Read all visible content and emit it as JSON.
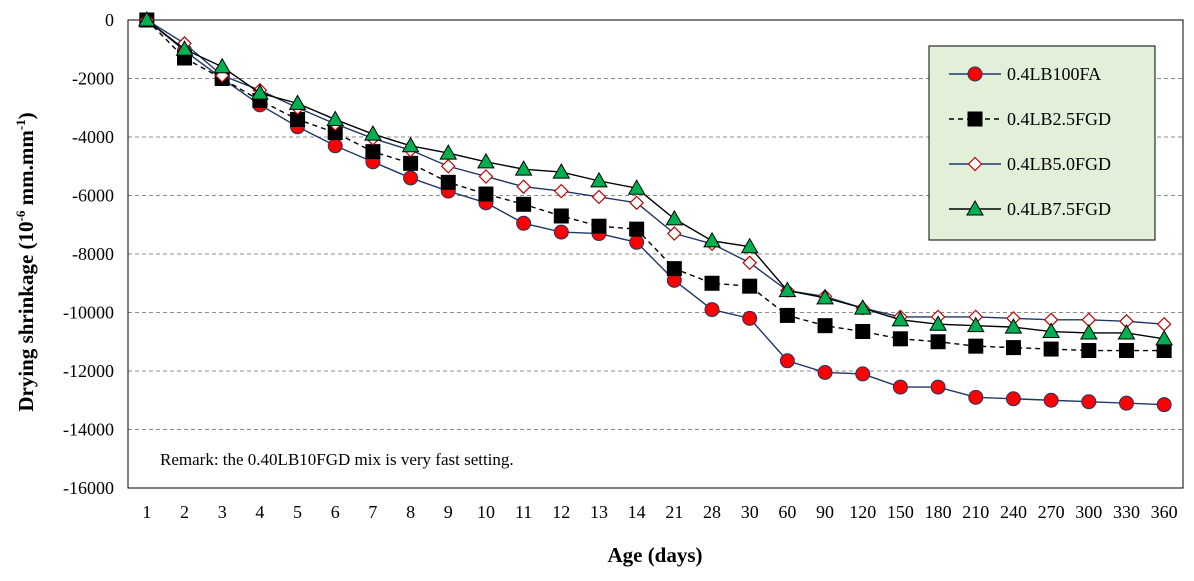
{
  "chart_data": {
    "type": "line",
    "xlabel": "Age (days)",
    "ylabel": "Drying shrinkage (10",
    "ylabel_sup1": "-6",
    "ylabel_mid": " mm.mm",
    "ylabel_sup2": "-1",
    "ylabel_end": ")",
    "ylim": [
      -16000,
      0
    ],
    "yticks": [
      "0",
      "-2000",
      "-4000",
      "-6000",
      "-8000",
      "-10000",
      "-12000",
      "-14000",
      "-16000"
    ],
    "ytick_values": [
      0,
      -2000,
      -4000,
      -6000,
      -8000,
      -10000,
      -12000,
      -14000,
      -16000
    ],
    "grid": "horizontal dashed",
    "categories": [
      "1",
      "2",
      "3",
      "4",
      "5",
      "6",
      "7",
      "8",
      "9",
      "10",
      "11",
      "12",
      "13",
      "14",
      "21",
      "28",
      "30",
      "60",
      "90",
      "120",
      "150",
      "180",
      "210",
      "240",
      "270",
      "300",
      "330",
      "360"
    ],
    "remark": "Remark: the 0.40LB10FGD mix is very fast setting.",
    "legend": {
      "placement": "top-right",
      "background": "#e2efd9"
    },
    "series": [
      {
        "name": "0.4LB100FA",
        "color": "#1f3864",
        "marker": "circle",
        "marker_fill": "#ff0000",
        "dash": "solid",
        "values": [
          0,
          -1050,
          -2000,
          -2900,
          -3650,
          -4300,
          -4850,
          -5400,
          -5850,
          -6250,
          -6950,
          -7250,
          -7300,
          -7600,
          -8900,
          -9900,
          -10200,
          -11650,
          -12050,
          -12100,
          -12550,
          -12550,
          -12900,
          -12950,
          -13000,
          -13050,
          -13100,
          -13150
        ]
      },
      {
        "name": "0.4LB2.5FGD",
        "color": "#000000",
        "marker": "square",
        "marker_fill": "#000000",
        "dash": "dashed",
        "values": [
          0,
          -1300,
          -2000,
          -2750,
          -3400,
          -3850,
          -4500,
          -4900,
          -5550,
          -5950,
          -6300,
          -6700,
          -7050,
          -7150,
          -8500,
          -9000,
          -9100,
          -10100,
          -10450,
          -10650,
          -10900,
          -11000,
          -11150,
          -11200,
          -11250,
          -11300,
          -11300,
          -11300
        ]
      },
      {
        "name": "0.4LB5.0FGD",
        "color": "#1f3864",
        "marker": "diamond",
        "marker_fill": "#ffffff",
        "marker_stroke": "#c00000",
        "dash": "solid",
        "values": [
          0,
          -800,
          -1900,
          -2400,
          -3000,
          -3550,
          -4050,
          -4450,
          -5000,
          -5350,
          -5700,
          -5850,
          -6050,
          -6250,
          -7300,
          -7650,
          -8300,
          -9250,
          -9450,
          -9850,
          -10150,
          -10150,
          -10150,
          -10200,
          -10250,
          -10250,
          -10300,
          -10400
        ]
      },
      {
        "name": "0.4LB7.5FGD",
        "color": "#000000",
        "marker": "triangle",
        "marker_fill": "#00b050",
        "dash": "solid",
        "values": [
          0,
          -1000,
          -1600,
          -2500,
          -2850,
          -3400,
          -3900,
          -4300,
          -4550,
          -4850,
          -5100,
          -5200,
          -5500,
          -5750,
          -6800,
          -7550,
          -7750,
          -9250,
          -9500,
          -9850,
          -10250,
          -10400,
          -10450,
          -10500,
          -10650,
          -10700,
          -10700,
          -10900
        ]
      }
    ]
  }
}
